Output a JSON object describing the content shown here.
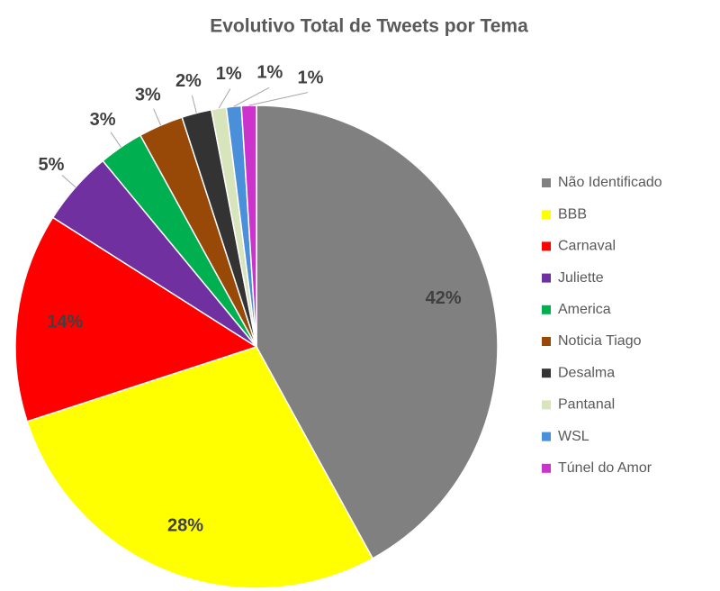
{
  "chart_data": {
    "type": "pie",
    "title": "Evolutivo Total de Tweets por Tema",
    "categories": [
      "Não Identificado",
      "BBB",
      "Carnaval",
      "Juliette",
      "America",
      "Noticia Tiago",
      "Desalma",
      "Pantanal",
      "WSL",
      "Túnel do Amor"
    ],
    "values": [
      42,
      28,
      14,
      5,
      3,
      3,
      2,
      1,
      1,
      1
    ],
    "value_labels": [
      "42%",
      "28%",
      "14%",
      "5%",
      "3%",
      "3%",
      "2%",
      "1%",
      "1%",
      "1%"
    ],
    "colors": [
      "#808080",
      "#ffff00",
      "#ff0000",
      "#7030a0",
      "#00b050",
      "#984807",
      "#333333",
      "#d8e4bc",
      "#4a8fd9",
      "#cc33cc"
    ],
    "legend": "right"
  }
}
